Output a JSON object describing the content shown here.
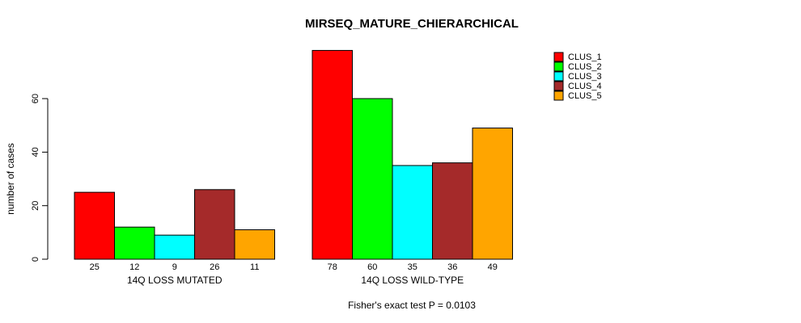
{
  "page": {
    "background": "#ffffff"
  },
  "chart_data": {
    "type": "bar",
    "title": "MIRSEQ_MATURE_CHIERARCHICAL",
    "ylabel": "number of cases",
    "xlabel": "",
    "yticks": [
      0,
      20,
      40,
      60
    ],
    "ylim": [
      0,
      78
    ],
    "grid": false,
    "legend_position": "top-right",
    "bar_value_labels": true,
    "categories": [
      "14Q LOSS MUTATED",
      "14Q LOSS WILD-TYPE"
    ],
    "series": [
      {
        "name": "CLUS_1",
        "color": "#FF0000",
        "values": [
          25,
          78
        ]
      },
      {
        "name": "CLUS_2",
        "color": "#00FF00",
        "values": [
          12,
          60
        ]
      },
      {
        "name": "CLUS_3",
        "color": "#00FFFF",
        "values": [
          9,
          35
        ]
      },
      {
        "name": "CLUS_4",
        "color": "#A52A2A",
        "values": [
          26,
          36
        ]
      },
      {
        "name": "CLUS_5",
        "color": "#FFA500",
        "values": [
          11,
          49
        ]
      }
    ],
    "annotation": "Fisher's exact test P = 0.0103"
  }
}
